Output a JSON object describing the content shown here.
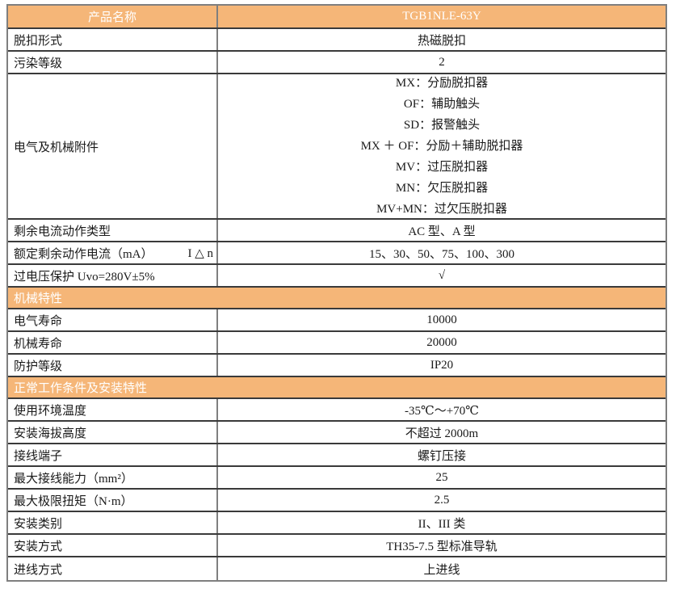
{
  "colors": {
    "accent_orange": "#f5b678",
    "header_text": "#ffffff",
    "body_text": "#1a1a1a",
    "outer_border": "#7f7f7f",
    "row_divider": "#3a3a3a"
  },
  "table": {
    "rows": [
      {
        "type": "header",
        "label": "产品名称",
        "value": "TGB1NLE-63Y"
      },
      {
        "type": "row",
        "label": "脱扣形式",
        "value": "热磁脱扣"
      },
      {
        "type": "row",
        "label": "污染等级",
        "value": "2"
      },
      {
        "type": "multirow",
        "label": "电气及机械附件",
        "lines": [
          "MX：分励脱扣器",
          "OF：辅助触头",
          "SD：报警触头",
          "MX ＋ OF：分励＋辅助脱扣器",
          "MV：过压脱扣器",
          "MN：欠压脱扣器",
          "MV+MN：过欠压脱扣器"
        ]
      },
      {
        "type": "row",
        "label": "剩余电流动作类型",
        "value": "AC 型、A 型"
      },
      {
        "type": "row",
        "label": "额定剩余动作电流（mA）",
        "label2": "I △ n",
        "value": "15、30、50、75、100、300"
      },
      {
        "type": "row",
        "label": "过电压保护 Uvo=280V±5%",
        "value": "√"
      },
      {
        "type": "section",
        "label": "机械特性"
      },
      {
        "type": "row",
        "label": "电气寿命",
        "value": "10000"
      },
      {
        "type": "row",
        "label": "机械寿命",
        "value": "20000"
      },
      {
        "type": "row",
        "label": "防护等级",
        "value": "IP20"
      },
      {
        "type": "section",
        "label": "正常工作条件及安装特性"
      },
      {
        "type": "row",
        "label": "使用环境温度",
        "value": "-35℃～+70℃"
      },
      {
        "type": "row",
        "label": "安装海拔高度",
        "value": "不超过 2000m"
      },
      {
        "type": "row",
        "label": "接线端子",
        "value": "螺钉压接"
      },
      {
        "type": "row",
        "label": "最大接线能力（mm²）",
        "value": "25"
      },
      {
        "type": "row",
        "label": "最大极限扭矩（N·m）",
        "value": "2.5"
      },
      {
        "type": "row",
        "label": "安装类别",
        "value": "II、III 类"
      },
      {
        "type": "row",
        "label": "安装方式",
        "value": "TH35-7.5 型标准导轨"
      },
      {
        "type": "row",
        "label": "进线方式",
        "value": "上进线"
      }
    ]
  }
}
